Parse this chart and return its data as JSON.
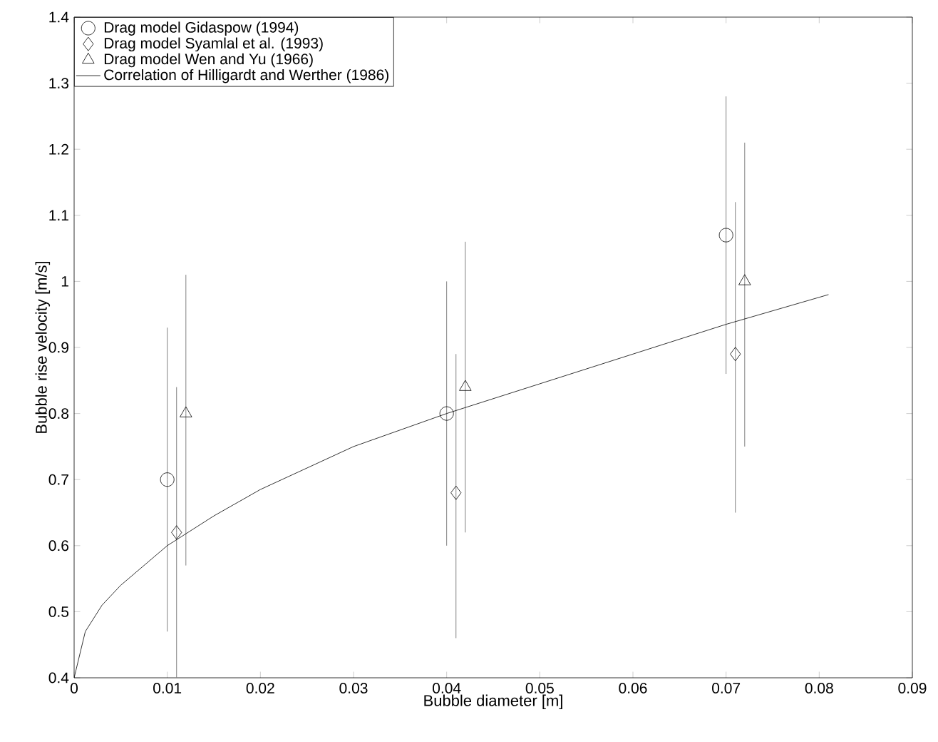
{
  "chart_data": {
    "type": "scatter",
    "xlabel": "Bubble diameter [m]",
    "ylabel": "Bubble rise velocity [m/s]",
    "xlim": [
      0,
      0.09
    ],
    "ylim": [
      0.4,
      1.4
    ],
    "xticks": [
      0,
      0.01,
      0.02,
      0.03,
      0.04,
      0.05,
      0.06,
      0.07,
      0.08,
      0.09
    ],
    "yticks": [
      0.4,
      0.5,
      0.6,
      0.7,
      0.8,
      0.9,
      1,
      1.1,
      1.2,
      1.3,
      1.4
    ],
    "legend": "top left",
    "grid": false,
    "series": [
      {
        "name": "Drag model Gidaspow (1994)",
        "marker": "circle",
        "color": "#000000",
        "x": [
          0.01,
          0.04,
          0.07
        ],
        "values": [
          0.7,
          0.8,
          1.07
        ],
        "errors": [
          [
            0.47,
            0.93
          ],
          [
            0.6,
            1.0
          ],
          [
            0.86,
            1.28
          ]
        ]
      },
      {
        "name": "Drag model Syamlal et al. (1993)",
        "marker": "diamond",
        "color": "#000000",
        "x": [
          0.011,
          0.041,
          0.071
        ],
        "values": [
          0.62,
          0.68,
          0.89
        ],
        "errors": [
          [
            0.4,
            0.84
          ],
          [
            0.46,
            0.89
          ],
          [
            0.65,
            1.12
          ]
        ]
      },
      {
        "name": "Drag model Wen and Yu (1966)",
        "marker": "triangle",
        "color": "#000000",
        "x": [
          0.012,
          0.042,
          0.072
        ],
        "values": [
          0.8,
          0.84,
          1.0
        ],
        "errors": [
          [
            0.57,
            1.01
          ],
          [
            0.62,
            1.06
          ],
          [
            0.75,
            1.21
          ]
        ]
      },
      {
        "name": "Correlation of Hilligardt and Werther (1986)",
        "type": "line",
        "marker": "none",
        "line_style": "solid",
        "color": "#000000",
        "x": [
          0,
          0.0012,
          0.003,
          0.005,
          0.0075,
          0.01,
          0.015,
          0.02,
          0.03,
          0.04,
          0.05,
          0.06,
          0.07,
          0.081
        ],
        "values": [
          0.4,
          0.47,
          0.51,
          0.54,
          0.57,
          0.6,
          0.645,
          0.685,
          0.75,
          0.8,
          0.845,
          0.89,
          0.935,
          0.98
        ]
      }
    ]
  }
}
